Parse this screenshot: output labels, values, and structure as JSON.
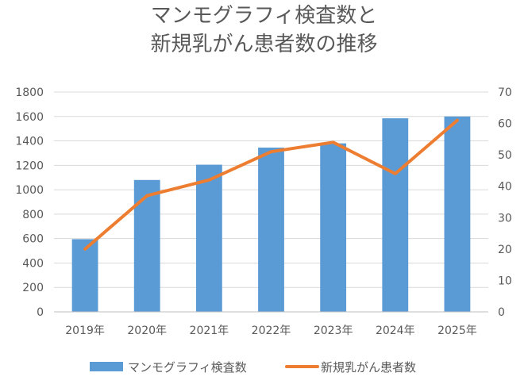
{
  "chart_data": {
    "type": "bar",
    "title_lines": [
      "マンモグラフィ検査数と",
      "新規乳がん患者数の推移"
    ],
    "categories": [
      "2019年",
      "2020年",
      "2021年",
      "2022年",
      "2023年",
      "2024年",
      "2025年"
    ],
    "series": [
      {
        "name": "マンモグラフィ検査数",
        "type": "bar",
        "axis": "left",
        "color": "#5B9BD5",
        "values": [
          595,
          1080,
          1205,
          1345,
          1380,
          1585,
          1600
        ]
      },
      {
        "name": "新規乳がん患者数",
        "type": "line",
        "axis": "right",
        "color": "#ED7D31",
        "values": [
          20,
          37,
          42,
          51,
          54,
          44,
          61
        ]
      }
    ],
    "y_left": {
      "min": 0,
      "max": 1800,
      "step": 200,
      "ticks": [
        "0",
        "200",
        "400",
        "600",
        "800",
        "1000",
        "1200",
        "1400",
        "1600",
        "1800"
      ]
    },
    "y_right": {
      "min": 0,
      "max": 70,
      "step": 10,
      "ticks": [
        "0",
        "10",
        "20",
        "30",
        "40",
        "50",
        "60",
        "70"
      ]
    },
    "grid": true,
    "legend": "bottom"
  }
}
